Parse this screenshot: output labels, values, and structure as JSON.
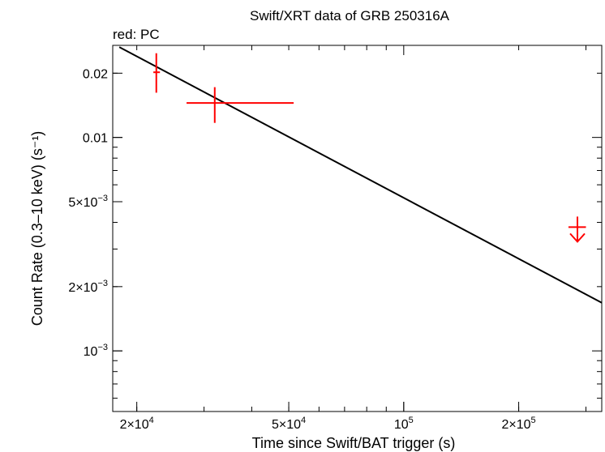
{
  "chart_data": {
    "type": "scatter",
    "title": "Swift/XRT data of GRB 250316A",
    "subtitle": "red: PC",
    "xlabel": "Time since Swift/BAT trigger (s)",
    "ylabel": "Count Rate (0.3–10 keV) (s⁻¹)",
    "x_scale": "log",
    "y_scale": "log",
    "xlim": [
      17300,
      330000
    ],
    "ylim": [
      0.00052,
      0.027
    ],
    "x_ticks": [
      {
        "value": 20000,
        "label": "2×10",
        "exp": "4"
      },
      {
        "value": 50000,
        "label": "5×10",
        "exp": "4"
      },
      {
        "value": 100000,
        "label": "10",
        "exp": "5"
      },
      {
        "value": 200000,
        "label": "2×10",
        "exp": "5"
      }
    ],
    "y_ticks": [
      {
        "value": 0.001,
        "label": "10",
        "exp": "−3"
      },
      {
        "value": 0.002,
        "label": "2×10",
        "exp": "−3"
      },
      {
        "value": 0.005,
        "label": "5×10",
        "exp": "−3"
      },
      {
        "value": 0.01,
        "label": "0.01",
        "exp": ""
      },
      {
        "value": 0.02,
        "label": "0.02",
        "exp": ""
      }
    ],
    "series": [
      {
        "color": "#ff0000",
        "points": [
          {
            "x": 22500,
            "x_lo": 22100,
            "x_hi": 23000,
            "y": 0.0202,
            "y_lo": 0.0162,
            "y_hi": 0.0248
          },
          {
            "x": 32000,
            "x_lo": 27000,
            "x_hi": 51500,
            "y": 0.0145,
            "y_lo": 0.0117,
            "y_hi": 0.0172
          }
        ],
        "upper_limits": [
          {
            "x": 285000,
            "x_lo": 270000,
            "x_hi": 300000,
            "y": 0.0038
          }
        ]
      }
    ],
    "model_line": {
      "color": "#000000",
      "points": [
        [
          18000,
          0.0265
        ],
        [
          330000,
          0.00168
        ]
      ]
    }
  }
}
